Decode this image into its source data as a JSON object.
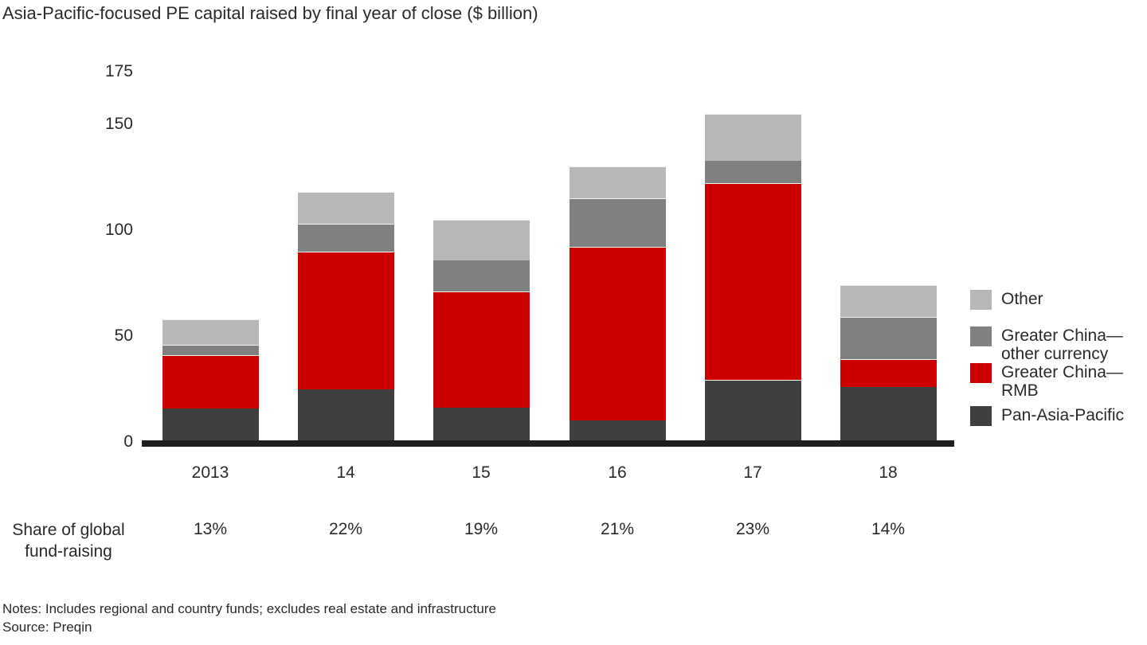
{
  "title": "Asia-Pacific-focused PE capital raised by final year of close ($ billion)",
  "notes": "Notes: Includes regional and country funds; excludes real estate and infrastructure",
  "source": "Source: Preqin",
  "share_row": {
    "label_line1": "Share of global",
    "label_line2": "fund-raising"
  },
  "colors": {
    "pan_asia_pacific": "#3f3f3f",
    "greater_china_rmb": "#cc0000",
    "greater_china_other_currency": "#808080",
    "other": "#b7b7b7",
    "axis": "#1f1f1f",
    "segment_separator": "#f2f2f2"
  },
  "chart_data": {
    "type": "bar",
    "stacked": true,
    "title": "Asia-Pacific-focused PE capital raised by final year of close ($ billion)",
    "categories": [
      "2013",
      "14",
      "15",
      "16",
      "17",
      "18"
    ],
    "series": [
      {
        "name": "Pan-Asia-Pacific",
        "color": "#3f3f3f",
        "values": [
          16,
          25,
          16,
          10,
          29,
          26
        ]
      },
      {
        "name": "Greater China—RMB",
        "color": "#cc0000",
        "values": [
          25,
          65,
          55,
          82,
          93,
          13
        ]
      },
      {
        "name": "Greater China—other currency",
        "color": "#808080",
        "values": [
          5,
          13,
          15,
          23,
          11,
          20
        ]
      },
      {
        "name": "Other",
        "color": "#b7b7b7",
        "values": [
          12,
          15,
          19,
          15,
          22,
          15
        ]
      }
    ],
    "totals": [
      58,
      118,
      105,
      130,
      155,
      74
    ],
    "share_of_global": [
      "13%",
      "22%",
      "19%",
      "21%",
      "23%",
      "14%"
    ],
    "xlabel": "",
    "ylabel": "",
    "ylim": [
      0,
      175
    ],
    "yticks": [
      0,
      50,
      100,
      150,
      175
    ],
    "grid": false,
    "legend_position": "right",
    "legend": [
      {
        "label_lines": [
          "Other"
        ],
        "color": "#b7b7b7"
      },
      {
        "label_lines": [
          "Greater China—",
          "other currency"
        ],
        "color": "#808080"
      },
      {
        "label_lines": [
          "Greater China—",
          "RMB"
        ],
        "color": "#cc0000"
      },
      {
        "label_lines": [
          "Pan-Asia-Pacific"
        ],
        "color": "#3f3f3f"
      }
    ]
  }
}
